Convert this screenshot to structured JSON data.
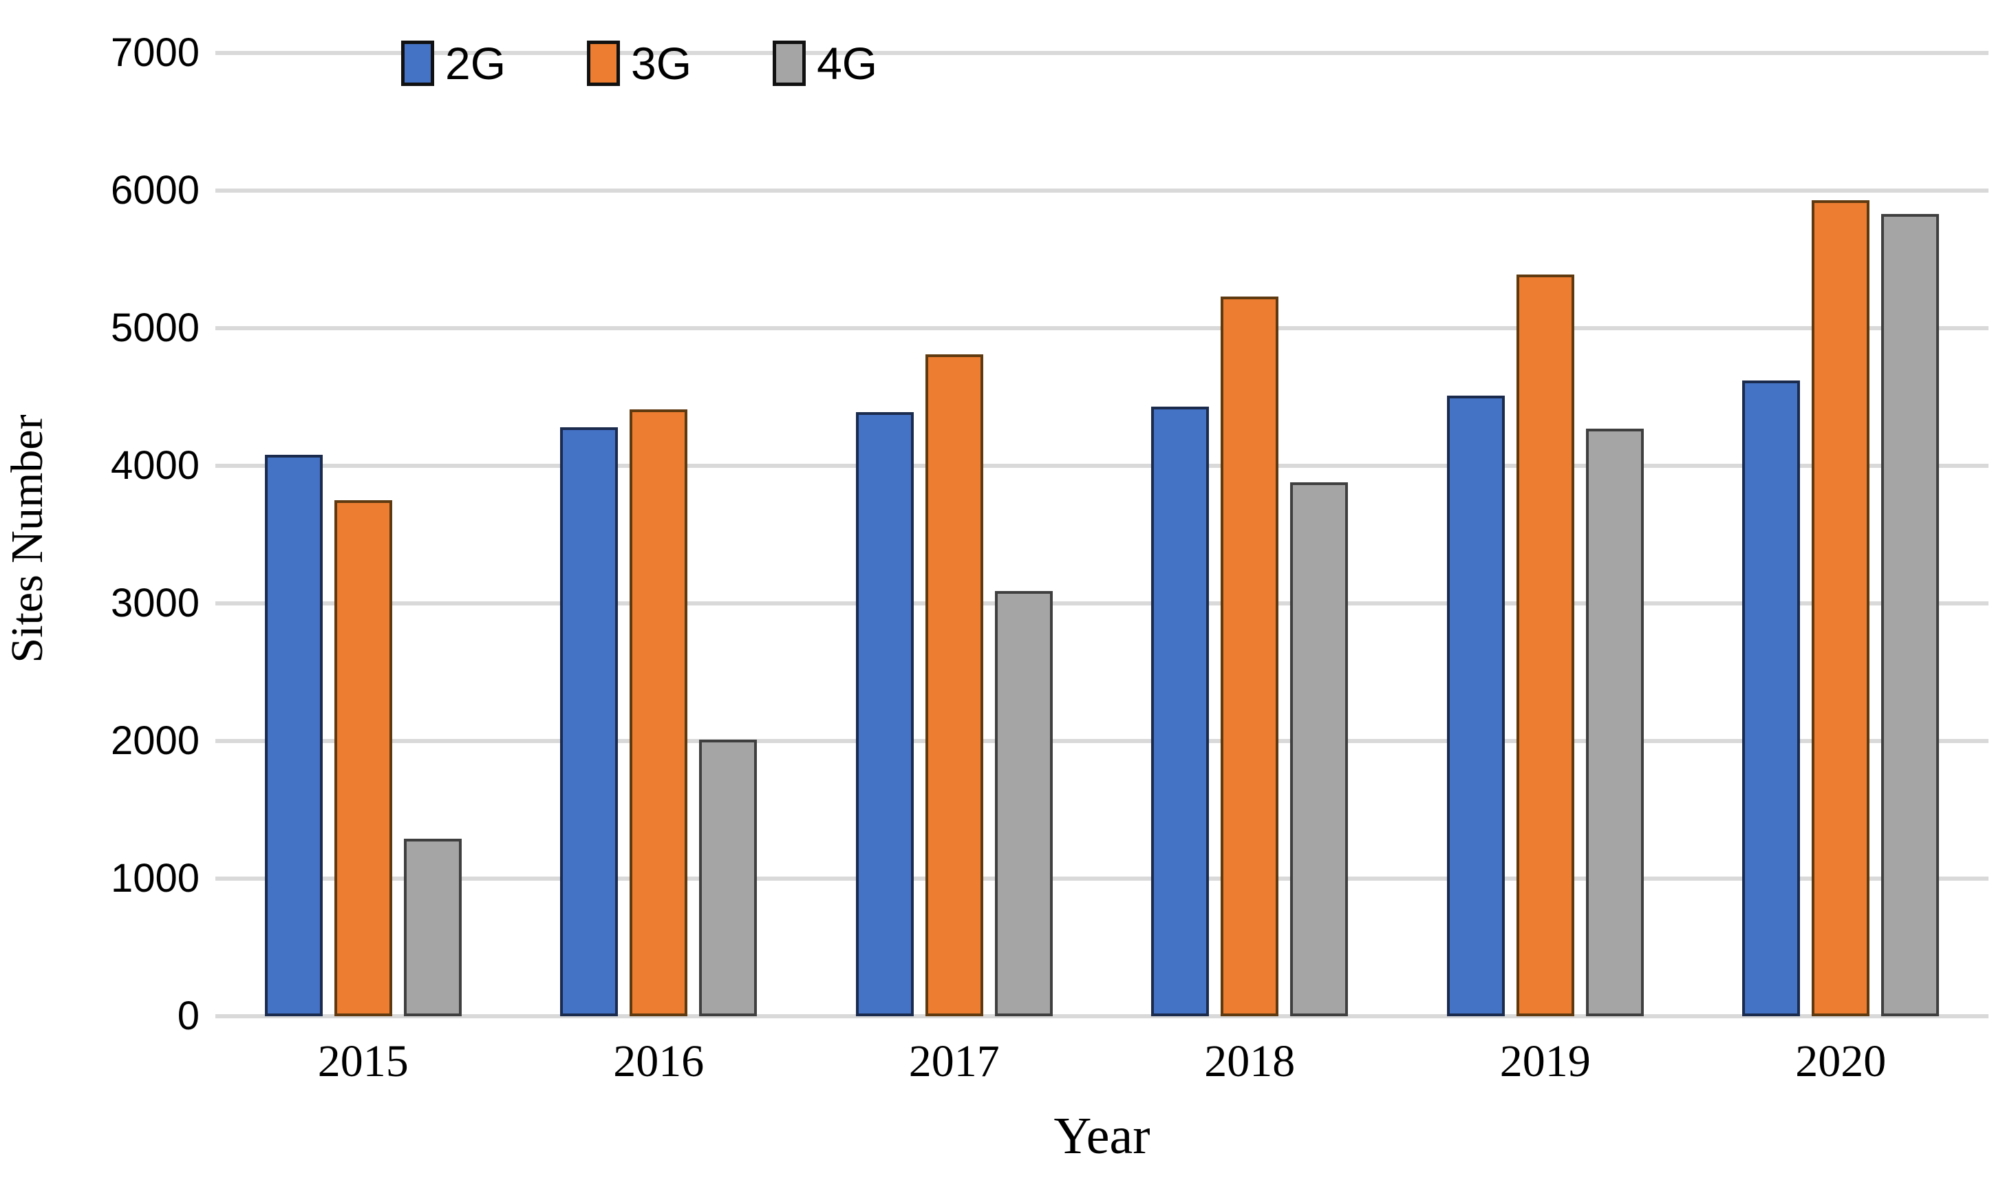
{
  "chart_data": {
    "type": "bar",
    "title": "",
    "categories": [
      "2015",
      "2016",
      "2017",
      "2018",
      "2019",
      "2020"
    ],
    "series": [
      {
        "name": "2G",
        "color": "#4472C4",
        "border_color": "#1b2b4d",
        "values": [
          4080,
          4280,
          4390,
          4430,
          4510,
          4620
        ]
      },
      {
        "name": "3G",
        "color": "#ED7D31",
        "border_color": "#5f3a10",
        "values": [
          3750,
          4410,
          4810,
          5230,
          5390,
          5930
        ]
      },
      {
        "name": "4G",
        "color": "#A5A5A5",
        "border_color": "#3f3f3f",
        "values": [
          1290,
          2010,
          3090,
          3880,
          4270,
          5830
        ]
      }
    ],
    "xlabel": "Year",
    "ylabel": "Sites Number",
    "ylim": [
      0,
      7000
    ],
    "ytick_step": 1000,
    "ytick_labels": [
      "0",
      "1000",
      "2000",
      "3000",
      "4000",
      "5000",
      "6000",
      "7000"
    ],
    "grid": "horizontal",
    "legend_position": "top",
    "gridline_color": "#d9d9d9",
    "background_color": "#ffffff",
    "text_color": "#000000"
  }
}
